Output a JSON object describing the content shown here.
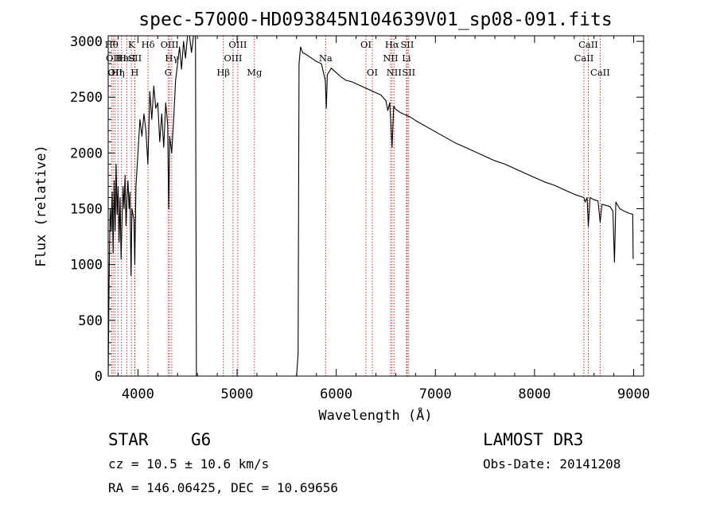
{
  "chart_data": {
    "type": "line",
    "title": "spec-57000-HD093845N104639V01_sp08-091.fits",
    "xlabel": "Wavelength (Å)",
    "ylabel": "Flux (relative)",
    "xlim": [
      3700,
      9100
    ],
    "ylim": [
      0,
      3050
    ],
    "x_ticks": [
      4000,
      5000,
      6000,
      7000,
      8000,
      9000
    ],
    "y_ticks": [
      0,
      500,
      1000,
      1500,
      2000,
      2500,
      3000
    ],
    "series": [
      {
        "name": "flux",
        "points": [
          [
            3700,
            0
          ],
          [
            3710,
            900
          ],
          [
            3720,
            1500
          ],
          [
            3730,
            1300
          ],
          [
            3740,
            1650
          ],
          [
            3750,
            1100
          ],
          [
            3760,
            1750
          ],
          [
            3770,
            1300
          ],
          [
            3780,
            1900
          ],
          [
            3790,
            1450
          ],
          [
            3800,
            1700
          ],
          [
            3810,
            1200
          ],
          [
            3820,
            1600
          ],
          [
            3830,
            1050
          ],
          [
            3840,
            1400
          ],
          [
            3850,
            1700
          ],
          [
            3860,
            1500
          ],
          [
            3870,
            1800
          ],
          [
            3880,
            1350
          ],
          [
            3890,
            1600
          ],
          [
            3900,
            1750
          ],
          [
            3910,
            1500
          ],
          [
            3920,
            1650
          ],
          [
            3930,
            900
          ],
          [
            3940,
            1500
          ],
          [
            3960,
            1400
          ],
          [
            3968,
            1000
          ],
          [
            3980,
            1700
          ],
          [
            4000,
            2000
          ],
          [
            4020,
            2300
          ],
          [
            4040,
            2150
          ],
          [
            4060,
            2350
          ],
          [
            4080,
            2200
          ],
          [
            4100,
            1900
          ],
          [
            4120,
            2550
          ],
          [
            4140,
            2300
          ],
          [
            4160,
            2600
          ],
          [
            4180,
            2400
          ],
          [
            4200,
            2450
          ],
          [
            4220,
            2100
          ],
          [
            4240,
            2350
          ],
          [
            4260,
            2050
          ],
          [
            4280,
            2450
          ],
          [
            4300,
            2250
          ],
          [
            4310,
            1500
          ],
          [
            4320,
            2150
          ],
          [
            4340,
            2000
          ],
          [
            4360,
            2300
          ],
          [
            4380,
            2650
          ],
          [
            4400,
            2800
          ],
          [
            4420,
            2950
          ],
          [
            4440,
            2750
          ],
          [
            4460,
            3000
          ],
          [
            4480,
            2850
          ],
          [
            4500,
            3050
          ],
          [
            4520,
            3050
          ],
          [
            4540,
            2900
          ],
          [
            4560,
            3050
          ],
          [
            4580,
            3050
          ],
          [
            4590,
            0
          ],
          [
            4620,
            0
          ],
          [
            5600,
            0
          ],
          [
            5615,
            200
          ],
          [
            5625,
            2800
          ],
          [
            5640,
            2950
          ],
          [
            5660,
            2900
          ],
          [
            5700,
            2880
          ],
          [
            5750,
            2850
          ],
          [
            5800,
            2820
          ],
          [
            5850,
            2800
          ],
          [
            5890,
            2650
          ],
          [
            5900,
            2400
          ],
          [
            5910,
            2700
          ],
          [
            5950,
            2760
          ],
          [
            6000,
            2720
          ],
          [
            6050,
            2680
          ],
          [
            6100,
            2650
          ],
          [
            6150,
            2640
          ],
          [
            6200,
            2620
          ],
          [
            6250,
            2600
          ],
          [
            6300,
            2580
          ],
          [
            6350,
            2560
          ],
          [
            6400,
            2540
          ],
          [
            6450,
            2520
          ],
          [
            6500,
            2470
          ],
          [
            6520,
            2380
          ],
          [
            6540,
            2450
          ],
          [
            6563,
            2050
          ],
          [
            6580,
            2420
          ],
          [
            6600,
            2390
          ],
          [
            6650,
            2360
          ],
          [
            6700,
            2340
          ],
          [
            6750,
            2320
          ],
          [
            6800,
            2290
          ],
          [
            6900,
            2240
          ],
          [
            7000,
            2190
          ],
          [
            7100,
            2140
          ],
          [
            7200,
            2090
          ],
          [
            7300,
            2050
          ],
          [
            7400,
            2010
          ],
          [
            7500,
            1970
          ],
          [
            7600,
            1930
          ],
          [
            7700,
            1900
          ],
          [
            7800,
            1860
          ],
          [
            7900,
            1820
          ],
          [
            8000,
            1780
          ],
          [
            8100,
            1740
          ],
          [
            8200,
            1710
          ],
          [
            8300,
            1670
          ],
          [
            8400,
            1630
          ],
          [
            8498,
            1600
          ],
          [
            8510,
            1560
          ],
          [
            8530,
            1600
          ],
          [
            8542,
            1340
          ],
          [
            8560,
            1600
          ],
          [
            8600,
            1580
          ],
          [
            8640,
            1570
          ],
          [
            8662,
            1380
          ],
          [
            8680,
            1540
          ],
          [
            8720,
            1530
          ],
          [
            8760,
            1520
          ],
          [
            8790,
            1480
          ],
          [
            8806,
            1020
          ],
          [
            8820,
            1560
          ],
          [
            8860,
            1500
          ],
          [
            8900,
            1480
          ],
          [
            8950,
            1460
          ],
          [
            8990,
            1450
          ],
          [
            8995,
            1050
          ]
        ]
      }
    ],
    "line_markers": [
      {
        "wavelength": 3734,
        "label": "Hθ",
        "row": 0
      },
      {
        "wavelength": 3750,
        "label": "OII",
        "row": 1
      },
      {
        "wavelength": 3770,
        "label": "OII",
        "row": 2
      },
      {
        "wavelength": 3798,
        "label": "Hη",
        "row": 2
      },
      {
        "wavelength": 3835,
        "label": "Hε",
        "row": 1
      },
      {
        "wavelength": 3889,
        "label": "HeI",
        "row": 1
      },
      {
        "wavelength": 3934,
        "label": "K",
        "row": 0
      },
      {
        "wavelength": 3968,
        "label": "H",
        "row": 2
      },
      {
        "wavelength": 3970,
        "label": "SII",
        "row": 1
      },
      {
        "wavelength": 4102,
        "label": "Hδ",
        "row": 0
      },
      {
        "wavelength": 4305,
        "label": "G",
        "row": 2
      },
      {
        "wavelength": 4319,
        "label": "OIII",
        "row": 0
      },
      {
        "wavelength": 4341,
        "label": "Hγ",
        "row": 1
      },
      {
        "wavelength": 4861,
        "label": "Hβ",
        "row": 2
      },
      {
        "wavelength": 4959,
        "label": "OIII",
        "row": 1
      },
      {
        "wavelength": 5007,
        "label": "OIII",
        "row": 0
      },
      {
        "wavelength": 5175,
        "label": "Mg",
        "row": 2
      },
      {
        "wavelength": 5893,
        "label": "Na",
        "row": 1
      },
      {
        "wavelength": 6300,
        "label": "OI",
        "row": 0
      },
      {
        "wavelength": 6364,
        "label": "OI",
        "row": 2
      },
      {
        "wavelength": 6548,
        "label": "NII",
        "row": 1
      },
      {
        "wavelength": 6563,
        "label": "Hα",
        "row": 0
      },
      {
        "wavelength": 6583,
        "label": "NII",
        "row": 2
      },
      {
        "wavelength": 6708,
        "label": "Li",
        "row": 1
      },
      {
        "wavelength": 6716,
        "label": "SII",
        "row": 0
      },
      {
        "wavelength": 6731,
        "label": "SII",
        "row": 2
      },
      {
        "wavelength": 8498,
        "label": "CaII",
        "row": 1
      },
      {
        "wavelength": 8542,
        "label": "CaII",
        "row": 0
      },
      {
        "wavelength": 8662,
        "label": "CaII",
        "row": 2
      }
    ],
    "colors": {
      "spectrum": "#000000",
      "marker": "#b22222",
      "axis": "#000000",
      "background": "#ffffff"
    }
  },
  "info": {
    "object_class": "STAR",
    "subclass": "G6",
    "survey": "LAMOST DR3",
    "redshift": "cz = 10.5 ± 10.6 km/s",
    "obs_date": "Obs-Date: 20141208",
    "coords": "RA = 146.06425, DEC =  10.69656"
  }
}
